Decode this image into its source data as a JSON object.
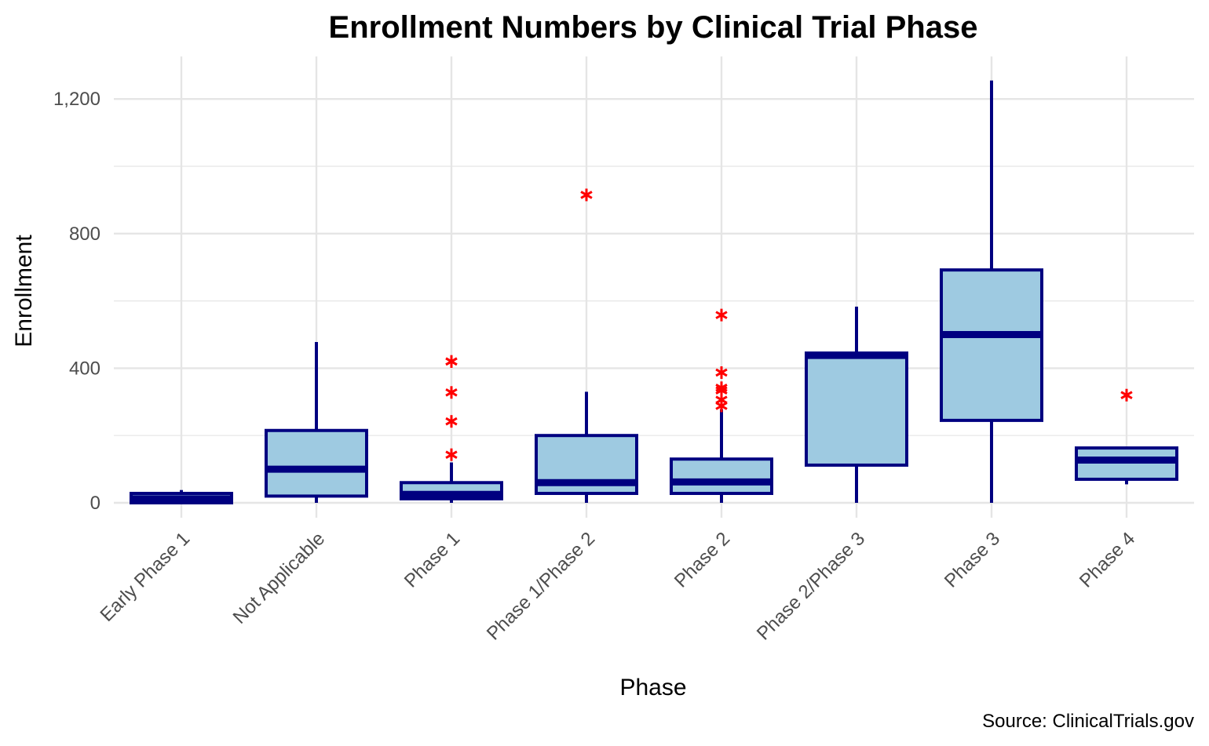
{
  "chart_data": {
    "type": "boxplot",
    "title": "Enrollment Numbers by Clinical Trial Phase",
    "xlabel": "Phase",
    "ylabel": "Enrollment",
    "caption": "Source: ClinicalTrials.gov",
    "ylim": [
      -60,
      1310
    ],
    "yticks": [
      0,
      400,
      800,
      1200
    ],
    "ytick_labels": [
      "0",
      "400",
      "800",
      "1,200"
    ],
    "grid": true,
    "categories": [
      "Early Phase 1",
      "Not Applicable",
      "Phase 1",
      "Phase 1/Phase 2",
      "Phase 2",
      "Phase 2/Phase 3",
      "Phase 3",
      "Phase 4"
    ],
    "boxes": [
      {
        "category": "Early Phase 1",
        "min": 0,
        "q1": 0,
        "median": 12,
        "q3": 28,
        "max": 38,
        "outliers": []
      },
      {
        "category": "Not Applicable",
        "min": 0,
        "q1": 20,
        "median": 100,
        "q3": 215,
        "max": 478,
        "outliers": []
      },
      {
        "category": "Phase 1",
        "min": 0,
        "q1": 12,
        "median": 25,
        "q3": 60,
        "max": 120,
        "outliers": [
          420,
          420,
          328,
          242,
          143
        ]
      },
      {
        "category": "Phase 1/Phase 2",
        "min": 0,
        "q1": 28,
        "median": 60,
        "q3": 200,
        "max": 330,
        "outliers": [
          915
        ]
      },
      {
        "category": "Phase 2",
        "min": 0,
        "q1": 28,
        "median": 62,
        "q3": 130,
        "max": 278,
        "outliers": [
          558,
          387,
          342,
          334,
          306,
          288
        ]
      },
      {
        "category": "Phase 2/Phase 3",
        "min": 0,
        "q1": 112,
        "median": 438,
        "q3": 445,
        "max": 583,
        "outliers": []
      },
      {
        "category": "Phase 3",
        "min": 0,
        "q1": 245,
        "median": 500,
        "q3": 692,
        "max": 1255,
        "outliers": []
      },
      {
        "category": "Phase 4",
        "min": 55,
        "q1": 70,
        "median": 127,
        "q3": 163,
        "max": 163,
        "outliers": [
          320
        ]
      }
    ],
    "colors": {
      "box_fill": "#9ecae1",
      "box_stroke": "#000080",
      "outlier": "#ff0000",
      "grid": "#e5e5e5"
    }
  }
}
